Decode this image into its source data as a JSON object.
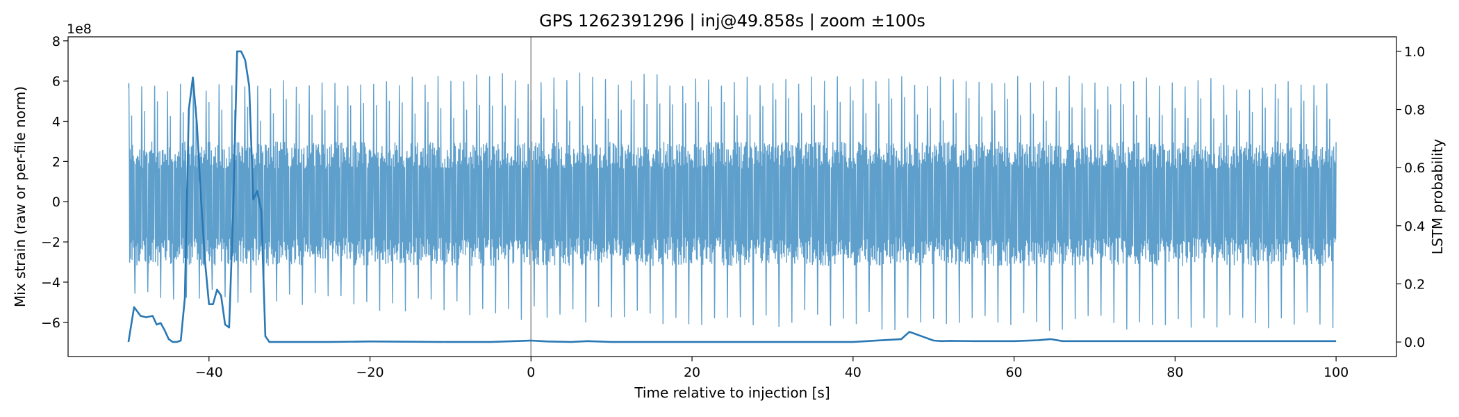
{
  "chart_data": {
    "type": "line",
    "title": "GPS 1262391296 | inj@49.858s | zoom ±100s",
    "xlabel": "Time relative to injection [s]",
    "ylabel_left": "Mix strain (raw or per-file norm)",
    "ylabel_right": "LSTM probability",
    "y_offset_text": "1e8",
    "xlim": [
      -57.5,
      107.5
    ],
    "ylim_left": [
      -7.7,
      8.2
    ],
    "ylim_right": [
      -0.05,
      1.05
    ],
    "x_ticks": [
      -40,
      -20,
      0,
      20,
      40,
      60,
      80,
      100
    ],
    "x_tick_labels": [
      "−40",
      "−20",
      "0",
      "20",
      "40",
      "60",
      "80",
      "100"
    ],
    "y_left_ticks": [
      -6,
      -4,
      -2,
      0,
      2,
      4,
      6,
      8
    ],
    "y_left_tick_labels": [
      "−6",
      "−4",
      "−2",
      "0",
      "2",
      "4",
      "6",
      "8"
    ],
    "y_right_ticks": [
      0.0,
      0.2,
      0.4,
      0.6,
      0.8,
      1.0
    ],
    "y_right_tick_labels": [
      "0.0",
      "0.2",
      "0.4",
      "0.6",
      "0.8",
      "1.0"
    ],
    "injection_marker_x": 0,
    "colors": {
      "strain": "#5f9fcc",
      "probability": "#2a78b4",
      "marker": "#a9a9a9"
    },
    "strain_series": {
      "name": "strain",
      "x_range": [
        -50,
        100
      ],
      "band_min": -3.2,
      "band_max": 3.0,
      "envelope_note_x": [
        -50,
        -25,
        0,
        25,
        50,
        75,
        100
      ],
      "peak_max": [
        6.1,
        6.1,
        6.5,
        6.3,
        6.3,
        6.3,
        6.0
      ],
      "peak_min": [
        -5.0,
        -5.3,
        -6.0,
        -6.2,
        -6.5,
        -6.4,
        -6.4
      ]
    },
    "probability_series": {
      "name": "LSTM probability",
      "x": [
        -50,
        -49.3,
        -48.5,
        -47.8,
        -47,
        -46.5,
        -46,
        -45.5,
        -45,
        -44.5,
        -44,
        -43.5,
        -43,
        -42.5,
        -42,
        -41.5,
        -41,
        -40.5,
        -40,
        -39.5,
        -39,
        -38.5,
        -38,
        -37.5,
        -37,
        -36.5,
        -36,
        -35.5,
        -35,
        -34.5,
        -34,
        -33.5,
        -33,
        -32.5,
        -32,
        -25,
        -20,
        -10,
        -5,
        0,
        2,
        5,
        7,
        10,
        20,
        30,
        40,
        46,
        47,
        47.5,
        48,
        49,
        50,
        51,
        52,
        55,
        60,
        63,
        64.5,
        66,
        70,
        80,
        90,
        100
      ],
      "y": [
        0.0,
        0.12,
        0.09,
        0.085,
        0.09,
        0.06,
        0.065,
        0.04,
        0.01,
        0.0,
        0.0,
        0.005,
        0.15,
        0.8,
        0.91,
        0.75,
        0.5,
        0.28,
        0.13,
        0.13,
        0.18,
        0.16,
        0.06,
        0.05,
        0.45,
        1.0,
        1.0,
        0.97,
        0.88,
        0.49,
        0.52,
        0.45,
        0.02,
        0.0,
        0.0,
        0.0,
        0.002,
        0.0,
        0.0,
        0.005,
        0.002,
        0.0,
        0.003,
        0.0,
        0.0,
        0.0,
        0.0,
        0.01,
        0.035,
        0.03,
        0.025,
        0.015,
        0.005,
        0.003,
        0.004,
        0.003,
        0.003,
        0.006,
        0.01,
        0.003,
        0.003,
        0.003,
        0.003,
        0.003
      ]
    }
  }
}
